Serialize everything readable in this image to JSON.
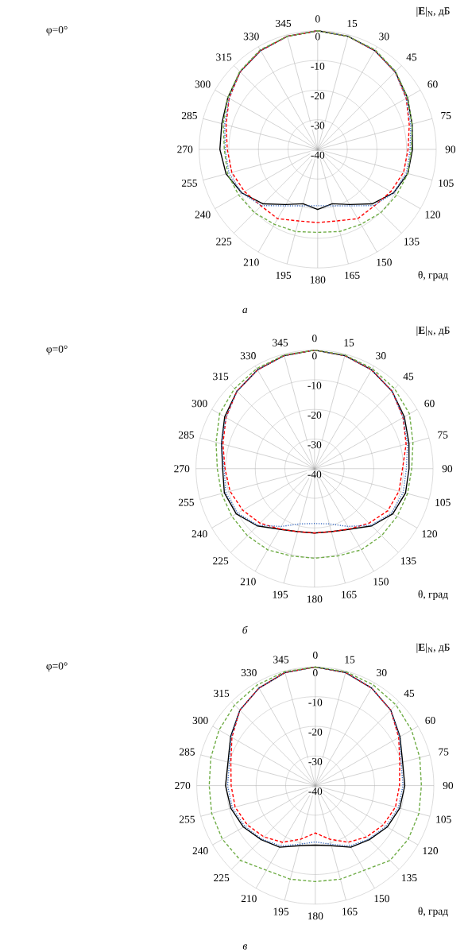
{
  "chart_data": [
    {
      "type": "radar",
      "title": "*а*",
      "xlabel": "θ, град",
      "ylabel": "|**E**|$_{N}$, дБ",
      "annotations": [
        "φ=0°"
      ],
      "grid": true,
      "categories": [
        "0",
        "15",
        "30",
        "45",
        "60",
        "75",
        "90",
        "105",
        "120",
        "135",
        "150",
        "165",
        "180",
        "195",
        "210",
        "225",
        "240",
        "255",
        "270",
        "285",
        "300",
        "315",
        "330",
        "345"
      ],
      "ylim": [
        -40,
        0
      ],
      "yticks": [
        -40,
        -30,
        -20,
        -10,
        0
      ],
      "series": [
        {
          "color": "#000000",
          "line_style": "solid",
          "values": [
            0,
            -0.5,
            -1.5,
            -3,
            -5,
            -7,
            -8,
            -8.5,
            -10.5,
            -14,
            -18.5,
            -21,
            -19.7,
            -21,
            -18.5,
            -14,
            -10.5,
            -8,
            -7,
            -6.5,
            -5,
            -3,
            -1.5,
            -0.5
          ]
        },
        {
          "color": "#ff0000",
          "line_style": "dashed",
          "values": [
            0,
            -0.5,
            -1.5,
            -3,
            -5.5,
            -8,
            -9.5,
            -10,
            -11.5,
            -13,
            -13,
            -15,
            -15.3,
            -15,
            -13,
            -13,
            -11.5,
            -10,
            -9.5,
            -8,
            -5.5,
            -3,
            -1.5,
            -0.5
          ]
        },
        {
          "color": "#4472c4",
          "line_style": "dotted",
          "values": [
            0,
            -0.5,
            -1.5,
            -3,
            -5.5,
            -7.5,
            -8.8,
            -9,
            -10.5,
            -13.2,
            -18,
            -20.3,
            -21,
            -20.3,
            -18,
            -13.2,
            -10.5,
            -9,
            -8.8,
            -7.5,
            -5.5,
            -3,
            -1.5,
            -0.5
          ]
        },
        {
          "color": "#70ad47",
          "line_style": "dashed",
          "values": [
            0,
            -0.5,
            -1.2,
            -2.8,
            -5,
            -7,
            -8.4,
            -8.5,
            -9.2,
            -9.8,
            -10.8,
            -11.3,
            -12,
            -11.3,
            -10.8,
            -9.8,
            -9.2,
            -8.5,
            -8.5,
            -7,
            -5,
            -2.8,
            -1.2,
            -0.5
          ]
        }
      ]
    },
    {
      "type": "radar",
      "title": "*б*",
      "xlabel": "θ, град",
      "ylabel": "|**E**|$_{N}$, дБ",
      "annotations": [
        "φ=0°"
      ],
      "grid": true,
      "categories": [
        "0",
        "15",
        "30",
        "45",
        "60",
        "75",
        "90",
        "105",
        "120",
        "135",
        "150",
        "165",
        "180",
        "195",
        "210",
        "225",
        "240",
        "255",
        "270",
        "285",
        "300",
        "315",
        "330",
        "345"
      ],
      "ylim": [
        -40,
        0
      ],
      "yticks": [
        -40,
        -30,
        -20,
        -10,
        0
      ],
      "series": [
        {
          "color": "#000000",
          "line_style": "solid",
          "values": [
            0,
            -0.5,
            -1.5,
            -3,
            -5,
            -7,
            -8.1,
            -8.2,
            -9.5,
            -12.7,
            -16.4,
            -18,
            -18.3,
            -18,
            -16.4,
            -12.7,
            -9.5,
            -8.5,
            -9,
            -7.5,
            -5,
            -3,
            -1.5,
            -0.5
          ]
        },
        {
          "color": "#ff0000",
          "line_style": "dashed",
          "values": [
            0,
            -0.5,
            -1.5,
            -3,
            -5.5,
            -8,
            -10.3,
            -10.5,
            -11.5,
            -14,
            -16.5,
            -18,
            -18.3,
            -18,
            -16.5,
            -14,
            -12,
            -10.5,
            -9.8,
            -8,
            -5.5,
            -3,
            -1.5,
            -0.5
          ]
        },
        {
          "color": "#4472c4",
          "line_style": "dotted",
          "values": [
            0,
            -0.5,
            -1.5,
            -3,
            -5.5,
            -7.5,
            -9,
            -9,
            -10,
            -13,
            -17.5,
            -20.7,
            -21.5,
            -20.7,
            -17.5,
            -13,
            -10,
            -9,
            -9.5,
            -7.5,
            -5.5,
            -3,
            -1.5,
            -0.5
          ]
        },
        {
          "color": "#70ad47",
          "line_style": "dashed",
          "values": [
            0,
            -0.3,
            -1,
            -1.8,
            -3,
            -5.6,
            -7.2,
            -7.5,
            -7.8,
            -8,
            -8.4,
            -9.5,
            -9.8,
            -9.5,
            -8.4,
            -8,
            -7.8,
            -7.5,
            -7.2,
            -5.6,
            -3,
            -1.8,
            -1,
            -0.3
          ]
        }
      ]
    },
    {
      "type": "radar",
      "title": "*в*",
      "xlabel": "θ, град",
      "ylabel": "|**E**|$_{N}$, дБ",
      "annotations": [
        "φ=0°"
      ],
      "grid": true,
      "categories": [
        "0",
        "15",
        "30",
        "45",
        "60",
        "75",
        "90",
        "105",
        "120",
        "135",
        "150",
        "165",
        "180",
        "195",
        "210",
        "225",
        "240",
        "255",
        "270",
        "285",
        "300",
        "315",
        "330",
        "345"
      ],
      "ylim": [
        -40,
        0
      ],
      "yticks": [
        -40,
        -30,
        -20,
        -10,
        0
      ],
      "series": [
        {
          "color": "#000000",
          "line_style": "solid",
          "values": [
            0,
            -0.5,
            -2,
            -4,
            -7,
            -9.5,
            -9.8,
            -10.5,
            -12,
            -14.2,
            -16,
            -19,
            -19.9,
            -19,
            -16,
            -14.2,
            -12,
            -10.5,
            -9.7,
            -9.5,
            -7,
            -4,
            -2,
            -0.5
          ]
        },
        {
          "color": "#ff0000",
          "line_style": "dashed",
          "values": [
            0,
            -0.5,
            -2,
            -4,
            -7.5,
            -10.5,
            -11.6,
            -12,
            -13.5,
            -15.5,
            -17.9,
            -21.3,
            -24,
            -21.3,
            -17.9,
            -15.5,
            -13.5,
            -12,
            -11.6,
            -10.5,
            -7.5,
            -4,
            -2,
            -0.5
          ]
        },
        {
          "color": "#4472c4",
          "line_style": "dotted",
          "values": [
            0,
            -0.5,
            -2,
            -4,
            -7.2,
            -10,
            -10.4,
            -11,
            -12.5,
            -14.5,
            -16.5,
            -19.5,
            -21,
            -19.5,
            -16.5,
            -14.5,
            -12.5,
            -11,
            -10.4,
            -10,
            -7.2,
            -4,
            -2,
            -0.5
          ]
        },
        {
          "color": "#70ad47",
          "line_style": "dashed",
          "values": [
            0,
            -0.2,
            -0.8,
            -1.5,
            -2.5,
            -3.5,
            -4.2,
            -3.8,
            -3.8,
            -4.3,
            -7,
            -7.3,
            -7.6,
            -7.3,
            -7,
            -4.3,
            -3.8,
            -3.8,
            -4.2,
            -3.5,
            -2.5,
            -1.5,
            -0.8,
            -0.2
          ]
        }
      ]
    }
  ]
}
